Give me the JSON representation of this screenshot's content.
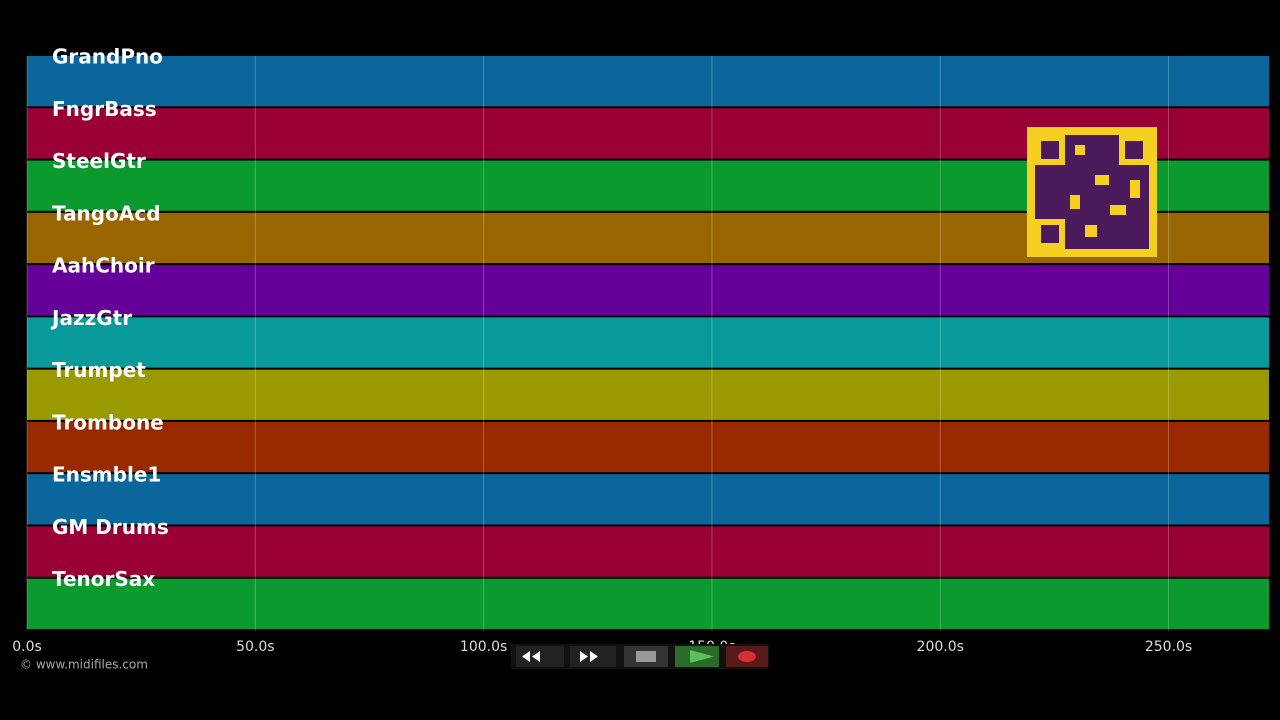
{
  "tracks": [
    {
      "name": "GrandPno",
      "color": "#0b669c"
    },
    {
      "name": "FngrBass",
      "color": "#990035"
    },
    {
      "name": "SteelGtr",
      "color": "#0a9a2e"
    },
    {
      "name": "TangoAcd",
      "color": "#996500"
    },
    {
      "name": "AahChoir",
      "color": "#650099"
    },
    {
      "name": "JazzGtr",
      "color": "#089a9a"
    },
    {
      "name": "Trumpet",
      "color": "#999a00"
    },
    {
      "name": "Trombone",
      "color": "#992a00"
    },
    {
      "name": "Ensmble1",
      "color": "#0b669c"
    },
    {
      "name": "GM Drums",
      "color": "#990035"
    },
    {
      "name": "TenorSax",
      "color": "#0a9a2e"
    }
  ],
  "time_axis": {
    "range": [
      0,
      272
    ],
    "ticks": [
      {
        "value": 0,
        "label": "0.0s"
      },
      {
        "value": 50,
        "label": "50.0s"
      },
      {
        "value": 100,
        "label": "100.0s"
      },
      {
        "value": 150,
        "label": "150.0s"
      },
      {
        "value": 200,
        "label": "200.0s"
      },
      {
        "value": 250,
        "label": "250.0s"
      }
    ]
  },
  "footer": {
    "copyright": "© www.midifiles.com"
  }
}
